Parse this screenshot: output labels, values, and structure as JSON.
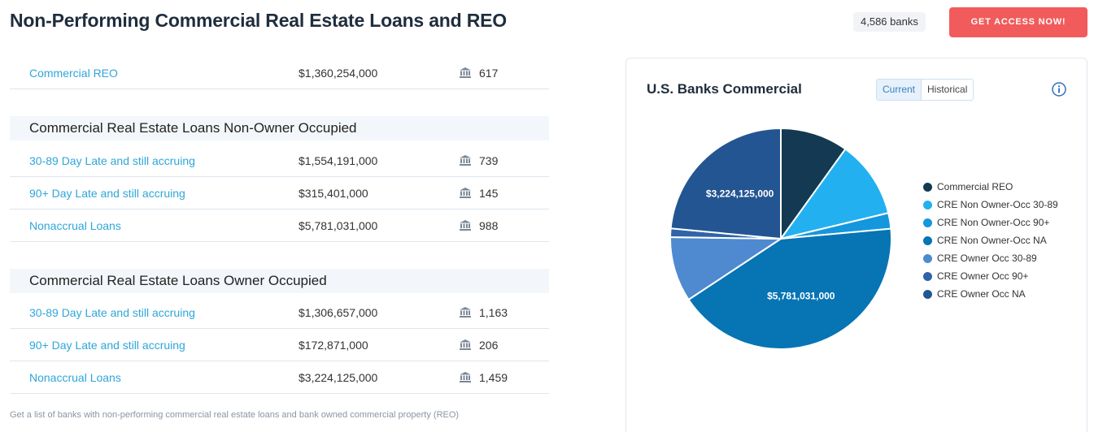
{
  "header": {
    "title": "Non-Performing Commercial Real Estate Loans and REO",
    "bank_count": "4,586 banks",
    "cta_label": "GET ACCESS NOW!"
  },
  "rows": [
    {
      "label": "Commercial REO",
      "amount": "$1,360,254,000",
      "count": "617"
    },
    {
      "label": "30-89 Day Late and still accruing",
      "amount": "$1,554,191,000",
      "count": "739"
    },
    {
      "label": "90+ Day Late and still accruing",
      "amount": "$315,401,000",
      "count": "145"
    },
    {
      "label": "Nonaccrual Loans",
      "amount": "$5,781,031,000",
      "count": "988"
    },
    {
      "label": "30-89 Day Late and still accruing",
      "amount": "$1,306,657,000",
      "count": "1,163"
    },
    {
      "label": "90+ Day Late and still accruing",
      "amount": "$172,871,000",
      "count": "206"
    },
    {
      "label": "Nonaccrual Loans",
      "amount": "$3,224,125,000",
      "count": "1,459"
    }
  ],
  "sections": [
    "Commercial Real Estate Loans Non-Owner Occupied",
    "Commercial Real Estate Loans Owner Occupied"
  ],
  "footnote": "Get a list of banks with non-performing commercial real estate loans and bank owned commercial property (REO)",
  "chart_card": {
    "title": "U.S. Banks Commercial",
    "toggle": {
      "current": "Current",
      "historical": "Historical"
    },
    "icons": {
      "info": "info-icon",
      "bank": "bank-icon"
    }
  },
  "chart_data": {
    "type": "pie",
    "title": "U.S. Banks Commercial",
    "legend_position": "right",
    "slices": [
      {
        "name": "Commercial REO",
        "value": 1360254000,
        "color": "#133a52"
      },
      {
        "name": "CRE Non Owner-Occ 30-89",
        "value": 1554191000,
        "color": "#23b0f0"
      },
      {
        "name": "CRE Non Owner-Occ 90+",
        "value": 315401000,
        "color": "#1497dc"
      },
      {
        "name": "CRE Non Owner-Occ NA",
        "value": 5781031000,
        "color": "#0774b4",
        "data_label": "$5,781,031,000"
      },
      {
        "name": "CRE Owner Occ 30-89",
        "value": 1306657000,
        "color": "#4f8ad0"
      },
      {
        "name": "CRE Owner Occ 90+",
        "value": 172871000,
        "color": "#2f64a8"
      },
      {
        "name": "CRE Owner Occ NA",
        "value": 3224125000,
        "color": "#235592",
        "data_label": "$3,224,125,000"
      }
    ]
  }
}
